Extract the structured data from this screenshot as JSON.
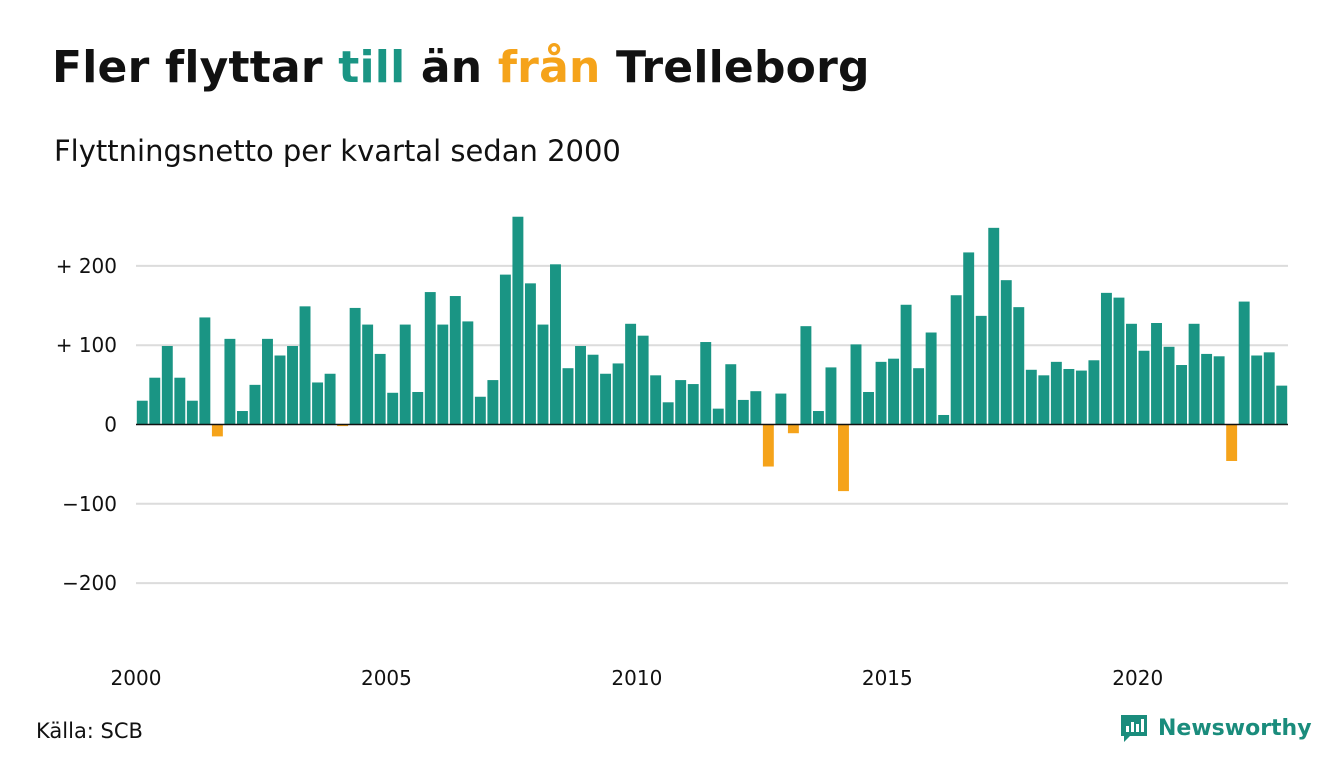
{
  "title": {
    "part1": "Fler flyttar ",
    "part2": "till",
    "part3": " än ",
    "part4": "från",
    "part5": " Trelleborg",
    "color_till": "#1a9584",
    "color_fran": "#f5a31a"
  },
  "subtitle": "Flyttningsnetto per kvartal sedan 2000",
  "source": "Källa: SCB",
  "logo": {
    "text": "Newsworthy",
    "color": "#1a8c7c"
  },
  "chart_data": {
    "type": "bar",
    "title": "Fler flyttar till än från Trelleborg",
    "subtitle": "Flyttningsnetto per kvartal sedan 2000",
    "xlabel": "",
    "ylabel": "",
    "ylim": [
      -250,
      270
    ],
    "yticks": [
      {
        "value": 200,
        "label": "+ 200"
      },
      {
        "value": 100,
        "label": "+ 100"
      },
      {
        "value": 0,
        "label": "0"
      },
      {
        "value": -100,
        "label": "−100"
      },
      {
        "value": -200,
        "label": "−200"
      }
    ],
    "xticks": [
      {
        "year": 2000,
        "label": "2000"
      },
      {
        "year": 2005,
        "label": "2005"
      },
      {
        "year": 2010,
        "label": "2010"
      },
      {
        "year": 2015,
        "label": "2015"
      },
      {
        "year": 2020,
        "label": "2020"
      }
    ],
    "grid": true,
    "start_year": 2000,
    "positive_color": "#1a9584",
    "negative_color": "#f5a31a",
    "values": [
      30,
      59,
      99,
      59,
      30,
      135,
      -15,
      108,
      17,
      50,
      108,
      87,
      99,
      149,
      53,
      64,
      -2,
      147,
      126,
      89,
      40,
      126,
      41,
      167,
      126,
      162,
      130,
      35,
      56,
      189,
      262,
      178,
      126,
      202,
      71,
      99,
      88,
      64,
      77,
      127,
      112,
      62,
      28,
      56,
      51,
      104,
      20,
      76,
      31,
      42,
      -53,
      39,
      -11,
      124,
      17,
      72,
      -84,
      101,
      41,
      79,
      83,
      151,
      71,
      116,
      12,
      163,
      217,
      137,
      248,
      182,
      148,
      69,
      62,
      79,
      70,
      68,
      81,
      166,
      160,
      127,
      93,
      128,
      98,
      75,
      127,
      89,
      86,
      -46,
      155,
      87,
      91,
      49
    ]
  }
}
